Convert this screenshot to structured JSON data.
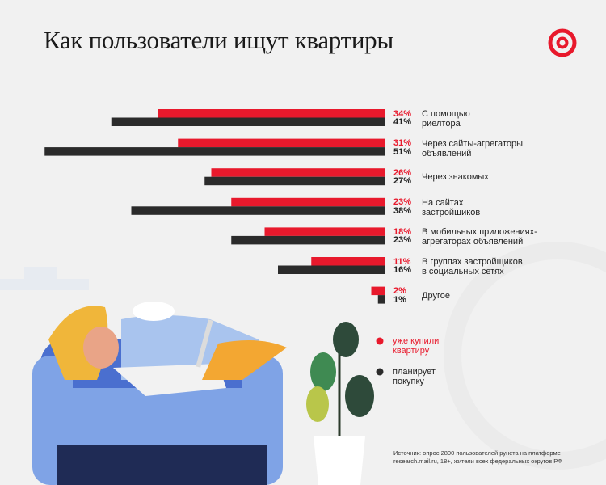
{
  "chart_data": {
    "type": "bar",
    "orientation": "horizontal",
    "title": "Как пользователи ищут квартиры",
    "categories": [
      "С помощью\nриелтора",
      "Через сайты-агрегаторы\nобъявлений",
      "Через знакомых",
      "На сайтах\nзастройщиков",
      "В мобильных приложениях-\nагрегаторах объявлений",
      "В группах застройщиков\nв социальных сетях",
      "Другое"
    ],
    "series": [
      {
        "name": "уже купили\nквартиру",
        "color": "#e8192c",
        "values": [
          34,
          31,
          26,
          23,
          18,
          11,
          2
        ],
        "value_labels": [
          "34%",
          "31%",
          "26%",
          "23%",
          "18%",
          "11%",
          "2%"
        ]
      },
      {
        "name": "планирует\nпокупку",
        "color": "#2b2b2b",
        "values": [
          41,
          51,
          27,
          38,
          23,
          16,
          1
        ],
        "value_labels": [
          "41%",
          "51%",
          "27%",
          "38%",
          "23%",
          "16%",
          "1%"
        ]
      }
    ],
    "source": "Источник: опрос 2800 пользователей рунета на платформе\nresearch.mail.ru, 18+, жители всех федеральных округов РФ"
  }
}
